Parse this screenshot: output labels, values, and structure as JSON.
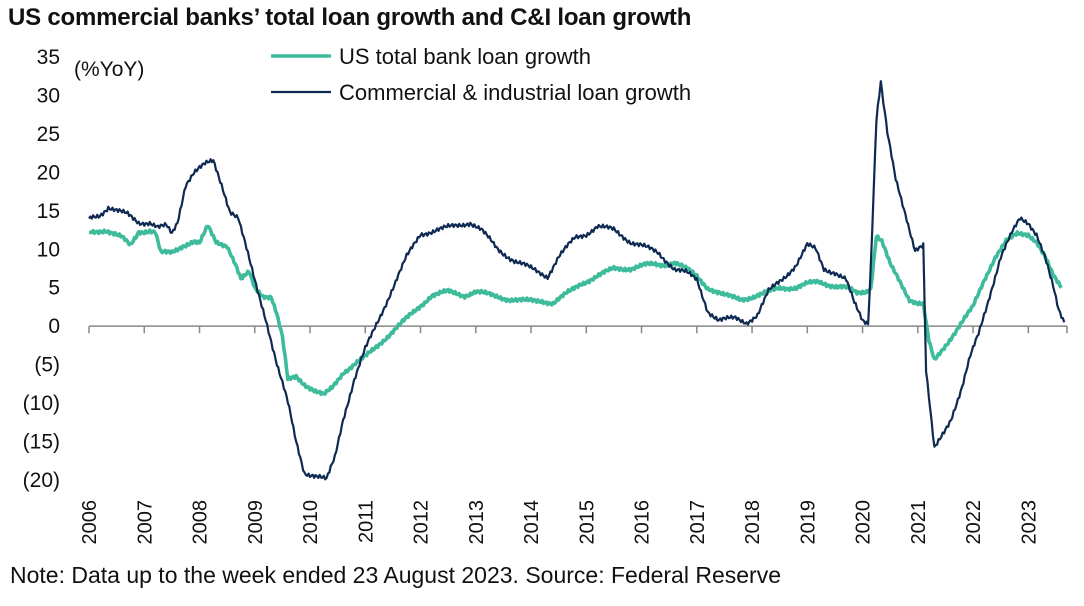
{
  "title": "US commercial banks’ total loan growth and C&I loan growth",
  "note": "Note: Data up to the week ended 23 August 2023. Source: Federal Reserve",
  "colors": {
    "total": "#3dbb9b",
    "ci": "#0f2a52",
    "axis": "#888888"
  },
  "chart_data": {
    "type": "line",
    "ylabel": "(%YoY)",
    "ylim": [
      -20,
      35
    ],
    "xlim": [
      2006,
      2023.7
    ],
    "grid": false,
    "legend_position": "top-center",
    "y_ticks": [
      {
        "value": 35,
        "label": "35"
      },
      {
        "value": 30,
        "label": "30"
      },
      {
        "value": 25,
        "label": "25"
      },
      {
        "value": 20,
        "label": "20"
      },
      {
        "value": 15,
        "label": "15"
      },
      {
        "value": 10,
        "label": "10"
      },
      {
        "value": 5,
        "label": "5"
      },
      {
        "value": 0,
        "label": "0"
      },
      {
        "value": -5,
        "label": "(5)"
      },
      {
        "value": -10,
        "label": "(10)"
      },
      {
        "value": -15,
        "label": "(15)"
      },
      {
        "value": -20,
        "label": "(20)"
      }
    ],
    "x_ticks": [
      "2006",
      "2007",
      "2008",
      "2009",
      "2010",
      "2011",
      "2012",
      "2013",
      "2014",
      "2015",
      "2016",
      "2017",
      "2018",
      "2019",
      "2020",
      "2021",
      "2022",
      "2023"
    ],
    "series": [
      {
        "name": "US total bank loan growth",
        "color": "#3dbb9b",
        "points": [
          [
            2006.0,
            12.2
          ],
          [
            2006.3,
            12.5
          ],
          [
            2006.6,
            11.5
          ],
          [
            2006.75,
            10.5
          ],
          [
            2006.9,
            12.3
          ],
          [
            2007.1,
            12.4
          ],
          [
            2007.2,
            12.2
          ],
          [
            2007.3,
            9.5
          ],
          [
            2007.5,
            9.6
          ],
          [
            2007.7,
            10.5
          ],
          [
            2007.9,
            11.0
          ],
          [
            2008.0,
            10.7
          ],
          [
            2008.15,
            13.0
          ],
          [
            2008.3,
            11.0
          ],
          [
            2008.5,
            10.5
          ],
          [
            2008.65,
            8.0
          ],
          [
            2008.75,
            6.0
          ],
          [
            2008.9,
            7.0
          ],
          [
            2009.0,
            5.0
          ],
          [
            2009.15,
            4.0
          ],
          [
            2009.3,
            3.8
          ],
          [
            2009.4,
            1.5
          ],
          [
            2009.5,
            -1.5
          ],
          [
            2009.6,
            -7.0
          ],
          [
            2009.75,
            -6.5
          ],
          [
            2009.9,
            -7.5
          ],
          [
            2010.1,
            -8.5
          ],
          [
            2010.25,
            -9.0
          ],
          [
            2010.4,
            -8.0
          ],
          [
            2010.6,
            -6.0
          ],
          [
            2010.8,
            -5.0
          ],
          [
            2011.0,
            -4.0
          ],
          [
            2011.3,
            -2.0
          ],
          [
            2011.6,
            0.0
          ],
          [
            2011.9,
            2.0
          ],
          [
            2012.2,
            4.0
          ],
          [
            2012.5,
            4.5
          ],
          [
            2012.8,
            4.0
          ],
          [
            2013.0,
            4.5
          ],
          [
            2013.3,
            4.0
          ],
          [
            2013.6,
            3.5
          ],
          [
            2013.9,
            3.3
          ],
          [
            2014.2,
            3.3
          ],
          [
            2014.4,
            3.0
          ],
          [
            2014.6,
            4.0
          ],
          [
            2014.9,
            5.5
          ],
          [
            2015.2,
            6.5
          ],
          [
            2015.5,
            7.5
          ],
          [
            2015.8,
            7.5
          ],
          [
            2016.1,
            8.0
          ],
          [
            2016.4,
            8.0
          ],
          [
            2016.6,
            8.3
          ],
          [
            2016.8,
            7.5
          ],
          [
            2017.0,
            6.5
          ],
          [
            2017.2,
            5.0
          ],
          [
            2017.5,
            4.0
          ],
          [
            2017.8,
            3.5
          ],
          [
            2018.0,
            3.8
          ],
          [
            2018.2,
            4.2
          ],
          [
            2018.5,
            5.0
          ],
          [
            2018.8,
            5.0
          ],
          [
            2019.0,
            5.5
          ],
          [
            2019.2,
            5.8
          ],
          [
            2019.5,
            5.2
          ],
          [
            2019.7,
            5.0
          ],
          [
            2019.9,
            4.3
          ],
          [
            2020.05,
            4.5
          ],
          [
            2020.15,
            5.0
          ],
          [
            2020.25,
            11.8
          ],
          [
            2020.35,
            11.0
          ],
          [
            2020.5,
            8.0
          ],
          [
            2020.7,
            5.5
          ],
          [
            2020.85,
            3.5
          ],
          [
            2021.0,
            3.0
          ],
          [
            2021.1,
            2.8
          ],
          [
            2021.2,
            -2.0
          ],
          [
            2021.3,
            -4.5
          ],
          [
            2021.4,
            -3.5
          ],
          [
            2021.6,
            -1.5
          ],
          [
            2021.8,
            0.5
          ],
          [
            2022.0,
            2.5
          ],
          [
            2022.2,
            6.0
          ],
          [
            2022.4,
            9.0
          ],
          [
            2022.6,
            11.0
          ],
          [
            2022.8,
            12.0
          ],
          [
            2023.0,
            12.0
          ],
          [
            2023.15,
            11.0
          ],
          [
            2023.3,
            9.0
          ],
          [
            2023.45,
            6.5
          ],
          [
            2023.6,
            5.0
          ]
        ]
      },
      {
        "name": "Commercial & industrial loan growth",
        "color": "#0f2a52",
        "points": [
          [
            2006.0,
            14.0
          ],
          [
            2006.2,
            14.5
          ],
          [
            2006.35,
            15.5
          ],
          [
            2006.5,
            15.0
          ],
          [
            2006.7,
            14.5
          ],
          [
            2006.9,
            13.5
          ],
          [
            2007.1,
            13.5
          ],
          [
            2007.25,
            12.8
          ],
          [
            2007.4,
            13.0
          ],
          [
            2007.5,
            12.0
          ],
          [
            2007.6,
            13.5
          ],
          [
            2007.75,
            18.5
          ],
          [
            2007.9,
            20.0
          ],
          [
            2008.1,
            21.0
          ],
          [
            2008.25,
            21.5
          ],
          [
            2008.4,
            18.5
          ],
          [
            2008.55,
            15.0
          ],
          [
            2008.7,
            14.0
          ],
          [
            2008.85,
            10.0
          ],
          [
            2009.0,
            6.0
          ],
          [
            2009.2,
            1.0
          ],
          [
            2009.4,
            -5.0
          ],
          [
            2009.6,
            -10.0
          ],
          [
            2009.75,
            -15.0
          ],
          [
            2009.9,
            -19.0
          ],
          [
            2010.1,
            -19.5
          ],
          [
            2010.3,
            -20.0
          ],
          [
            2010.45,
            -17.0
          ],
          [
            2010.6,
            -12.0
          ],
          [
            2010.8,
            -7.0
          ],
          [
            2011.0,
            -3.0
          ],
          [
            2011.25,
            1.0
          ],
          [
            2011.5,
            5.0
          ],
          [
            2011.75,
            9.0
          ],
          [
            2012.0,
            12.0
          ],
          [
            2012.3,
            12.5
          ],
          [
            2012.6,
            13.0
          ],
          [
            2012.9,
            13.5
          ],
          [
            2013.1,
            12.5
          ],
          [
            2013.4,
            10.0
          ],
          [
            2013.7,
            8.5
          ],
          [
            2014.0,
            7.5
          ],
          [
            2014.3,
            6.5
          ],
          [
            2014.5,
            9.0
          ],
          [
            2014.8,
            11.5
          ],
          [
            2015.0,
            12.0
          ],
          [
            2015.2,
            13.0
          ],
          [
            2015.5,
            12.5
          ],
          [
            2015.8,
            11.0
          ],
          [
            2016.0,
            10.5
          ],
          [
            2016.3,
            9.5
          ],
          [
            2016.6,
            7.5
          ],
          [
            2016.8,
            7.0
          ],
          [
            2017.0,
            6.0
          ],
          [
            2017.2,
            2.0
          ],
          [
            2017.4,
            0.8
          ],
          [
            2017.7,
            1.0
          ],
          [
            2017.9,
            0.5
          ],
          [
            2018.1,
            1.5
          ],
          [
            2018.3,
            4.5
          ],
          [
            2018.6,
            6.5
          ],
          [
            2018.8,
            8.0
          ],
          [
            2019.0,
            10.5
          ],
          [
            2019.15,
            10.0
          ],
          [
            2019.3,
            7.5
          ],
          [
            2019.5,
            7.0
          ],
          [
            2019.7,
            6.0
          ],
          [
            2019.85,
            3.0
          ],
          [
            2020.0,
            0.8
          ],
          [
            2020.1,
            0.5
          ],
          [
            2020.15,
            8.0
          ],
          [
            2020.25,
            27.0
          ],
          [
            2020.33,
            31.5
          ],
          [
            2020.45,
            25.0
          ],
          [
            2020.6,
            19.0
          ],
          [
            2020.8,
            14.0
          ],
          [
            2020.95,
            10.0
          ],
          [
            2021.1,
            10.5
          ],
          [
            2021.15,
            -6.0
          ],
          [
            2021.3,
            -16.0
          ],
          [
            2021.45,
            -14.0
          ],
          [
            2021.6,
            -12.0
          ],
          [
            2021.8,
            -8.0
          ],
          [
            2021.95,
            -4.0
          ],
          [
            2022.1,
            -1.0
          ],
          [
            2022.3,
            4.0
          ],
          [
            2022.5,
            9.0
          ],
          [
            2022.7,
            12.0
          ],
          [
            2022.85,
            14.0
          ],
          [
            2023.0,
            13.5
          ],
          [
            2023.15,
            12.0
          ],
          [
            2023.3,
            9.0
          ],
          [
            2023.45,
            5.0
          ],
          [
            2023.55,
            2.0
          ],
          [
            2023.65,
            0.5
          ]
        ]
      }
    ]
  }
}
